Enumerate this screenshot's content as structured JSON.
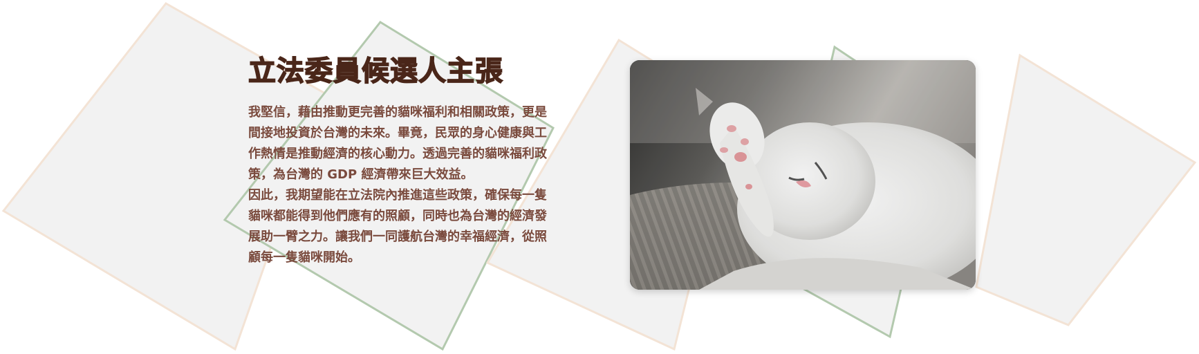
{
  "title": "立法委員候選人主張",
  "paragraphs": [
    "我堅信，藉由推動更完善的貓咪福利和相關政策，更是間接地投資於台灣的未來。畢竟，民眾的身心健康與工作熱情是推動經濟的核心動力。透過完善的貓咪福利政策，為台灣的 GDP 經濟帶來巨大效益。",
    "因此，我期望能在立法院內推進這些政策，確保每一隻貓咪都能得到他們應有的照顧，同時也為台灣的經濟發展助一臂之力。讓我們一同護航台灣的幸福經濟，從照顧每一隻貓咪開始。"
  ],
  "image": {
    "subject": "white kitten sleeping with paw over face on a ribbed cushion"
  },
  "colors": {
    "title": "#4a2619",
    "body": "#7a4a3d",
    "shape_fill": "#f2f2f2",
    "shape_outline_peach": "#f3e3d5",
    "shape_outline_green": "#b3c9ae"
  }
}
